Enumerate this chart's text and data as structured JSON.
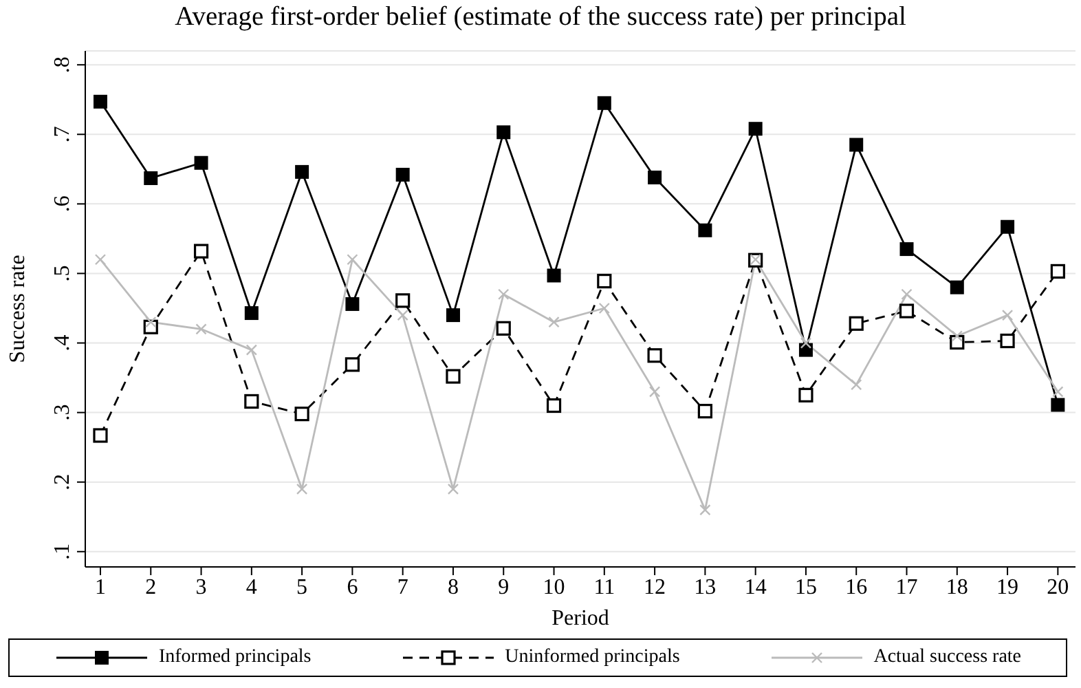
{
  "chart_data": {
    "type": "line",
    "title": "Average first-order belief (estimate of the success rate) per principal",
    "xlabel": "Period",
    "ylabel": "Success rate",
    "x": [
      1,
      2,
      3,
      4,
      5,
      6,
      7,
      8,
      9,
      10,
      11,
      12,
      13,
      14,
      15,
      16,
      17,
      18,
      19,
      20
    ],
    "xlim": [
      0.7,
      20.35
    ],
    "xticks": [
      1,
      2,
      3,
      4,
      5,
      6,
      7,
      8,
      9,
      10,
      11,
      12,
      13,
      14,
      15,
      16,
      17,
      18,
      19,
      20
    ],
    "ylim": [
      0.078,
      0.82
    ],
    "yticks": [
      {
        "value": 0.1,
        "label": ".1"
      },
      {
        "value": 0.2,
        "label": ".2"
      },
      {
        "value": 0.3,
        "label": ".3"
      },
      {
        "value": 0.4,
        "label": ".4"
      },
      {
        "value": 0.5,
        "label": ".5"
      },
      {
        "value": 0.6,
        "label": ".6"
      },
      {
        "value": 0.7,
        "label": ".7"
      },
      {
        "value": 0.8,
        "label": ".8"
      }
    ],
    "grid": "y",
    "legend": "bottom",
    "series": [
      {
        "name": "Informed principals",
        "color": "#000000",
        "marker": "square",
        "line_style": "solid",
        "values": [
          0.747,
          0.637,
          0.659,
          0.443,
          0.646,
          0.456,
          0.642,
          0.44,
          0.703,
          0.497,
          0.745,
          0.638,
          0.562,
          0.708,
          0.39,
          0.685,
          0.535,
          0.48,
          0.567,
          0.311
        ]
      },
      {
        "name": "Uninformed principals",
        "color": "#000000",
        "marker": "square-open",
        "line_style": "dashed",
        "values": [
          0.267,
          0.423,
          0.532,
          0.316,
          0.298,
          0.369,
          0.461,
          0.352,
          0.421,
          0.31,
          0.489,
          0.382,
          0.302,
          0.519,
          0.325,
          0.428,
          0.446,
          0.401,
          0.403,
          0.503
        ]
      },
      {
        "name": "Actual success rate",
        "color": "#bbbbbb",
        "marker": "cross",
        "line_style": "solid",
        "values": [
          0.52,
          0.43,
          0.42,
          0.39,
          0.19,
          0.52,
          0.44,
          0.19,
          0.47,
          0.43,
          0.45,
          0.33,
          0.16,
          0.52,
          0.4,
          0.34,
          0.47,
          0.41,
          0.44,
          0.33
        ]
      }
    ]
  }
}
